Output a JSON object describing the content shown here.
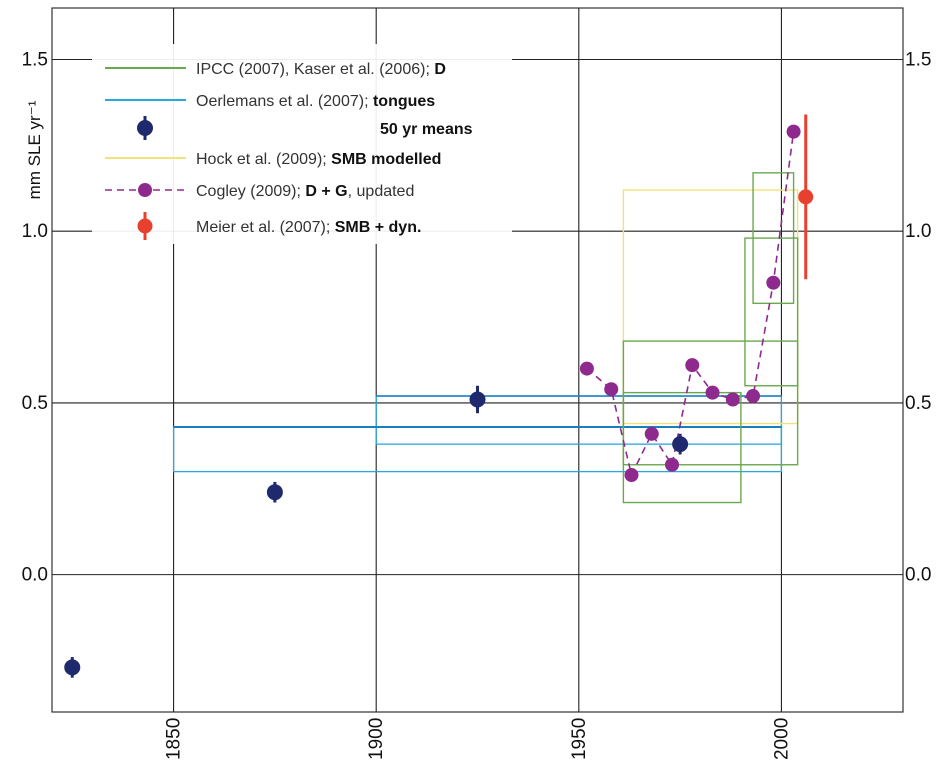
{
  "chart_data": {
    "type": "scatter",
    "ylabel": "mm SLE yr⁻¹",
    "xlim": [
      1820,
      2030
    ],
    "ylim": [
      -0.4,
      1.65
    ],
    "grid": true,
    "legend_position": "top-left",
    "x_ticks": [
      1850,
      1900,
      1950,
      2000
    ],
    "y_ticks": [
      0.0,
      0.5,
      1.0,
      1.5
    ],
    "y_tick_labels_left": [
      "0.0",
      "0.5",
      "1.0",
      "1.5"
    ],
    "y_tick_labels_right": [
      "0.0",
      "0.5",
      "1.0",
      "1.5"
    ],
    "legend": [
      {
        "key": "ipcc",
        "text": "IPCC (2007), Kaser et al. (2006);",
        "bold": "D"
      },
      {
        "key": "oerlemans",
        "text": "Oerlemans et al. (2007);",
        "bold": "tongues"
      },
      {
        "key": "means",
        "text": "",
        "bold": "50 yr means"
      },
      {
        "key": "hock",
        "text": "Hock et al. (2009);",
        "bold": "SMB modelled"
      },
      {
        "key": "cogley",
        "text": "Cogley (2009);",
        "bold": "D + G",
        "suffix": ", updated"
      },
      {
        "key": "meier",
        "text": "Meier et al. (2007);",
        "bold": "SMB + dyn."
      }
    ],
    "colors": {
      "ipcc": "#6aa84f",
      "oerlemans": "#29a8e0",
      "means": "#1f2a6e",
      "hock": "#f3e27a",
      "cogley": "#8e2a8e",
      "meier": "#e8402e",
      "grid": "#222222"
    },
    "series": [
      {
        "name": "IPCC (2007), Kaser et al. (2006); D",
        "kind": "boxes",
        "boxes": [
          {
            "x0": 1961,
            "x1": 1990,
            "y0": 0.21,
            "y1": 0.53
          },
          {
            "x0": 1961,
            "x1": 2004,
            "y0": 0.32,
            "y1": 0.68
          },
          {
            "x0": 1991,
            "x1": 2004,
            "y0": 0.55,
            "y1": 0.98
          },
          {
            "x0": 1993,
            "x1": 2003,
            "y0": 0.79,
            "y1": 1.17
          }
        ]
      },
      {
        "name": "Oerlemans et al. (2007); tongues",
        "kind": "bands",
        "bands": [
          {
            "x0": 1850,
            "x1": 2000,
            "y0": 0.3,
            "y1": 0.43
          },
          {
            "x0": 1900,
            "x1": 2000,
            "y0": 0.38,
            "y1": 0.52
          }
        ]
      },
      {
        "name": "50 yr means",
        "kind": "points",
        "points": [
          {
            "x": 1825,
            "y": -0.27,
            "err": 0.03
          },
          {
            "x": 1875,
            "y": 0.24,
            "err": 0.03
          },
          {
            "x": 1925,
            "y": 0.51,
            "err": 0.04
          },
          {
            "x": 1975,
            "y": 0.38,
            "err": 0.03
          }
        ]
      },
      {
        "name": "Hock et al. (2009); SMB modelled",
        "kind": "boxes",
        "boxes": [
          {
            "x0": 1961,
            "x1": 2004,
            "y0": 0.44,
            "y1": 1.12
          }
        ]
      },
      {
        "name": "Cogley (2009); D + G, updated",
        "kind": "line",
        "x": [
          1952,
          1958,
          1963,
          1968,
          1973,
          1978,
          1983,
          1988,
          1993,
          1998,
          2003
        ],
        "y": [
          0.6,
          0.54,
          0.29,
          0.41,
          0.32,
          0.61,
          0.53,
          0.51,
          0.52,
          0.85,
          1.29
        ]
      },
      {
        "name": "Meier et al. (2007); SMB + dyn.",
        "kind": "points",
        "points": [
          {
            "x": 2006,
            "y": 1.1,
            "err": 0.24
          }
        ]
      }
    ]
  }
}
